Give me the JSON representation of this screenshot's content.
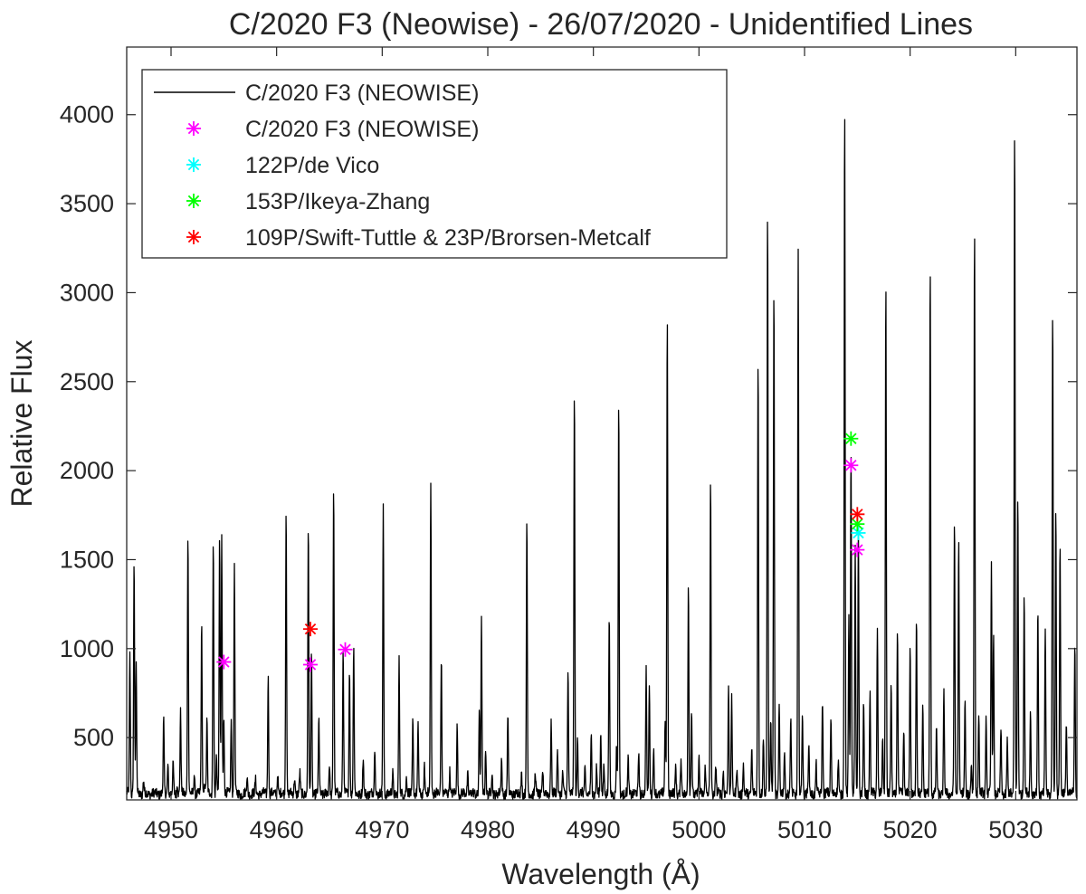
{
  "chart_data": {
    "type": "line",
    "title": "C/2020 F3 (Neowise) - 26/07/2020 - Unidentified Lines",
    "xlabel": "Wavelength (Å)",
    "ylabel": "Relative Flux",
    "xlim": [
      4945.8,
      5035.8
    ],
    "ylim": [
      150,
      4380
    ],
    "x_ticks": [
      4950,
      4960,
      4970,
      4980,
      4990,
      5000,
      5010,
      5020,
      5030
    ],
    "y_ticks": [
      500,
      1000,
      1500,
      2000,
      2500,
      3000,
      3500,
      4000
    ],
    "x_tick_labels": [
      "4950",
      "4960",
      "4970",
      "4980",
      "4990",
      "5000",
      "5010",
      "5020",
      "5030"
    ],
    "y_tick_labels": [
      "500",
      "1000",
      "1500",
      "2000",
      "2500",
      "3000",
      "3500",
      "4000"
    ],
    "grid": false,
    "legend_position": "top-left",
    "legend": [
      {
        "label": "C/2020 F3 (NEOWISE)",
        "marker": "line",
        "color": "#000000"
      },
      {
        "label": "C/2020 F3 (NEOWISE)",
        "marker": "asterisk",
        "color": "#ff00ff"
      },
      {
        "label": "122P/de Vico",
        "marker": "asterisk",
        "color": "#00ffff"
      },
      {
        "label": "153P/Ikeya-Zhang",
        "marker": "asterisk",
        "color": "#00ff00"
      },
      {
        "label": "109P/Swift-Tuttle & 23P/Brorsen-Metcalf",
        "marker": "asterisk",
        "color": "#ff0000"
      }
    ],
    "spectrum": {
      "name": "C/2020 F3 (NEOWISE)",
      "color": "#000000",
      "baseline": 185,
      "lines": [
        [
          4946.1,
          970
        ],
        [
          4946.5,
          1500
        ],
        [
          4946.7,
          900
        ],
        [
          4947.4,
          260
        ],
        [
          4949.3,
          600
        ],
        [
          4949.7,
          350
        ],
        [
          4950.2,
          350
        ],
        [
          4950.6,
          250
        ],
        [
          4950.9,
          640
        ],
        [
          4951.6,
          1670
        ],
        [
          4952.2,
          300
        ],
        [
          4952.9,
          1130
        ],
        [
          4953.2,
          260
        ],
        [
          4953.4,
          600
        ],
        [
          4954.0,
          1640
        ],
        [
          4954.3,
          400
        ],
        [
          4954.6,
          1620
        ],
        [
          4954.8,
          1620
        ],
        [
          4955.0,
          600
        ],
        [
          4955.7,
          600
        ],
        [
          4956.0,
          1480
        ],
        [
          4957.2,
          280
        ],
        [
          4958.0,
          260
        ],
        [
          4959.2,
          850
        ],
        [
          4960.1,
          300
        ],
        [
          4960.9,
          1800
        ],
        [
          4961.7,
          280
        ],
        [
          4962.2,
          300
        ],
        [
          4963.0,
          1690
        ],
        [
          4963.3,
          1000
        ],
        [
          4964.0,
          600
        ],
        [
          4965.0,
          350
        ],
        [
          4965.4,
          1920
        ],
        [
          4966.3,
          1000
        ],
        [
          4966.9,
          900
        ],
        [
          4967.3,
          1030
        ],
        [
          4968.2,
          380
        ],
        [
          4969.3,
          450
        ],
        [
          4970.1,
          1790
        ],
        [
          4971.0,
          300
        ],
        [
          4971.6,
          930
        ],
        [
          4972.3,
          280
        ],
        [
          4972.9,
          600
        ],
        [
          4973.4,
          560
        ],
        [
          4974.0,
          340
        ],
        [
          4974.6,
          1960
        ],
        [
          4975.6,
          960
        ],
        [
          4976.4,
          320
        ],
        [
          4977.1,
          570
        ],
        [
          4978.1,
          300
        ],
        [
          4979.2,
          650
        ],
        [
          4979.4,
          1150
        ],
        [
          4979.8,
          450
        ],
        [
          4980.4,
          300
        ],
        [
          4981.3,
          380
        ],
        [
          4981.9,
          630
        ],
        [
          4983.2,
          300
        ],
        [
          4983.7,
          1710
        ],
        [
          4984.5,
          300
        ],
        [
          4985.2,
          320
        ],
        [
          4986.0,
          600
        ],
        [
          4986.6,
          440
        ],
        [
          4987.1,
          300
        ],
        [
          4987.6,
          880
        ],
        [
          4988.2,
          2470
        ],
        [
          4988.5,
          500
        ],
        [
          4989.2,
          330
        ],
        [
          4989.8,
          500
        ],
        [
          4990.3,
          340
        ],
        [
          4990.7,
          520
        ],
        [
          4991.0,
          350
        ],
        [
          4991.5,
          1190
        ],
        [
          4992.2,
          450
        ],
        [
          4992.4,
          2400
        ],
        [
          4993.3,
          380
        ],
        [
          4994.3,
          420
        ],
        [
          4995.0,
          890
        ],
        [
          4995.3,
          800
        ],
        [
          4995.7,
          430
        ],
        [
          4996.8,
          600
        ],
        [
          4997.0,
          2880
        ],
        [
          4997.8,
          350
        ],
        [
          4998.3,
          380
        ],
        [
          4999.0,
          1370
        ],
        [
          4999.3,
          650
        ],
        [
          5000.0,
          380
        ],
        [
          5000.6,
          350
        ],
        [
          5001.1,
          1960
        ],
        [
          5001.6,
          350
        ],
        [
          5002.3,
          320
        ],
        [
          5002.8,
          790
        ],
        [
          5003.1,
          750
        ],
        [
          5003.6,
          330
        ],
        [
          5004.2,
          350
        ],
        [
          5005.0,
          440
        ],
        [
          5005.6,
          2640
        ],
        [
          5006.1,
          500
        ],
        [
          5006.5,
          3510
        ],
        [
          5006.8,
          600
        ],
        [
          5007.1,
          3030
        ],
        [
          5007.6,
          680
        ],
        [
          5008.1,
          430
        ],
        [
          5008.7,
          600
        ],
        [
          5009.4,
          3230
        ],
        [
          5009.8,
          650
        ],
        [
          5010.4,
          460
        ],
        [
          5011.1,
          350
        ],
        [
          5011.7,
          720
        ],
        [
          5012.5,
          620
        ],
        [
          5013.2,
          380
        ],
        [
          5013.8,
          4050
        ],
        [
          5014.2,
          1200
        ],
        [
          5014.4,
          2150
        ],
        [
          5014.8,
          1550
        ],
        [
          5015.1,
          1700
        ],
        [
          5015.6,
          700
        ],
        [
          5016.2,
          750
        ],
        [
          5016.9,
          1110
        ],
        [
          5017.4,
          500
        ],
        [
          5017.7,
          3070
        ],
        [
          5018.2,
          800
        ],
        [
          5018.8,
          1120
        ],
        [
          5019.4,
          550
        ],
        [
          5020.0,
          1010
        ],
        [
          5020.6,
          1180
        ],
        [
          5021.2,
          680
        ],
        [
          5021.9,
          3180
        ],
        [
          5022.5,
          550
        ],
        [
          5023.2,
          750
        ],
        [
          5024.2,
          1720
        ],
        [
          5024.6,
          1620
        ],
        [
          5025.2,
          700
        ],
        [
          5025.8,
          350
        ],
        [
          5026.1,
          3380
        ],
        [
          5026.5,
          650
        ],
        [
          5027.2,
          620
        ],
        [
          5027.7,
          1480
        ],
        [
          5027.9,
          1080
        ],
        [
          5028.6,
          550
        ],
        [
          5029.2,
          480
        ],
        [
          5029.9,
          3940
        ],
        [
          5030.2,
          1850
        ],
        [
          5030.8,
          1320
        ],
        [
          5031.4,
          650
        ],
        [
          5032.1,
          1220
        ],
        [
          5032.8,
          1110
        ],
        [
          5033.5,
          2930
        ],
        [
          5033.8,
          1780
        ],
        [
          5034.2,
          1610
        ],
        [
          5034.8,
          600
        ],
        [
          5035.6,
          1050
        ]
      ]
    },
    "markers": [
      {
        "series": "C/2020 F3 (NEOWISE)",
        "color": "#ff00ff",
        "points": [
          [
            4955.0,
            925
          ],
          [
            4963.2,
            910
          ],
          [
            4966.5,
            995
          ],
          [
            5014.4,
            2030
          ],
          [
            5015.0,
            1555
          ]
        ]
      },
      {
        "series": "122P/de Vico",
        "color": "#00ffff",
        "points": [
          [
            5015.1,
            1650
          ]
        ]
      },
      {
        "series": "153P/Ikeya-Zhang",
        "color": "#00ff00",
        "points": [
          [
            5014.4,
            2180
          ],
          [
            5015.0,
            1700
          ]
        ]
      },
      {
        "series": "109P/Swift-Tuttle & 23P/Brorsen-Metcalf",
        "color": "#ff0000",
        "points": [
          [
            4963.2,
            1110
          ],
          [
            5015.0,
            1755
          ]
        ]
      }
    ]
  }
}
